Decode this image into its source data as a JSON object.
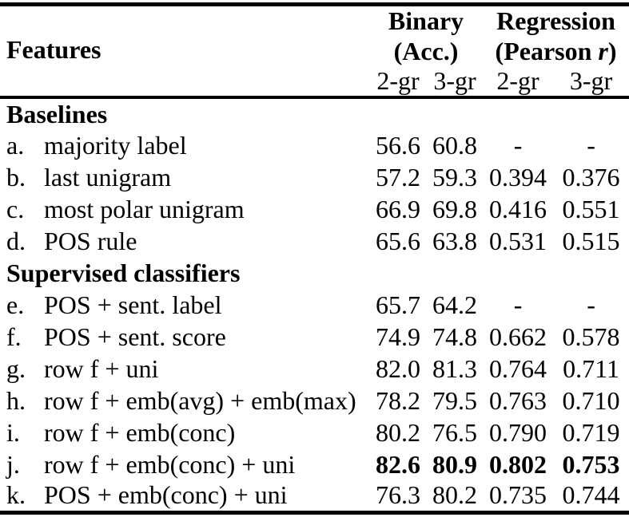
{
  "colors": {
    "text": "#000000",
    "background": "#ffffff",
    "rule": "#000000"
  },
  "table": {
    "header": {
      "features_label": "Features",
      "group1_title": "Binary",
      "group1_sub": "(Acc.)",
      "group2_title": "Regression",
      "group2_sub_prefix": "(Pearson ",
      "group2_sub_italic": "r",
      "group2_sub_suffix": ")",
      "subcolumns": [
        "2-gr",
        "3-gr",
        "2-gr",
        "3-gr"
      ]
    },
    "sections": [
      {
        "title": "Baselines",
        "rows": [
          {
            "letter": "a.",
            "feature": "majority label",
            "values": [
              "56.6",
              "60.8",
              "-",
              "-"
            ],
            "values_bold": false
          },
          {
            "letter": "b.",
            "feature": "last unigram",
            "values": [
              "57.2",
              "59.3",
              "0.394",
              "0.376"
            ],
            "values_bold": false
          },
          {
            "letter": "c.",
            "feature": "most polar unigram",
            "values": [
              "66.9",
              "69.8",
              "0.416",
              "0.551"
            ],
            "values_bold": false
          },
          {
            "letter": "d.",
            "feature": "POS rule",
            "values": [
              "65.6",
              "63.8",
              "0.531",
              "0.515"
            ],
            "values_bold": false
          }
        ]
      },
      {
        "title": "Supervised classifiers",
        "rows": [
          {
            "letter": "e.",
            "feature": "POS + sent. label",
            "values": [
              "65.7",
              "64.2",
              "-",
              "-"
            ],
            "values_bold": false
          },
          {
            "letter": "f.",
            "feature": "POS + sent. score",
            "values": [
              "74.9",
              "74.8",
              "0.662",
              "0.578"
            ],
            "values_bold": false
          },
          {
            "letter": "g.",
            "feature": "row f + uni",
            "values": [
              "82.0",
              "81.3",
              "0.764",
              "0.711"
            ],
            "values_bold": false
          },
          {
            "letter": "h.",
            "feature": "row f + emb(avg) + emb(max)",
            "values": [
              "78.2",
              "79.5",
              "0.763",
              "0.710"
            ],
            "values_bold": false
          },
          {
            "letter": "i.",
            "feature": "row f + emb(conc)",
            "values": [
              "80.2",
              "76.5",
              "0.790",
              "0.719"
            ],
            "values_bold": false
          },
          {
            "letter": "j.",
            "feature": "row f + emb(conc) + uni",
            "values": [
              "82.6",
              "80.9",
              "0.802",
              "0.753"
            ],
            "values_bold": true
          },
          {
            "letter": "k.",
            "feature": "POS + emb(conc) + uni",
            "values": [
              "76.3",
              "80.2",
              "0.735",
              "0.744"
            ],
            "values_bold": false
          }
        ]
      }
    ]
  }
}
